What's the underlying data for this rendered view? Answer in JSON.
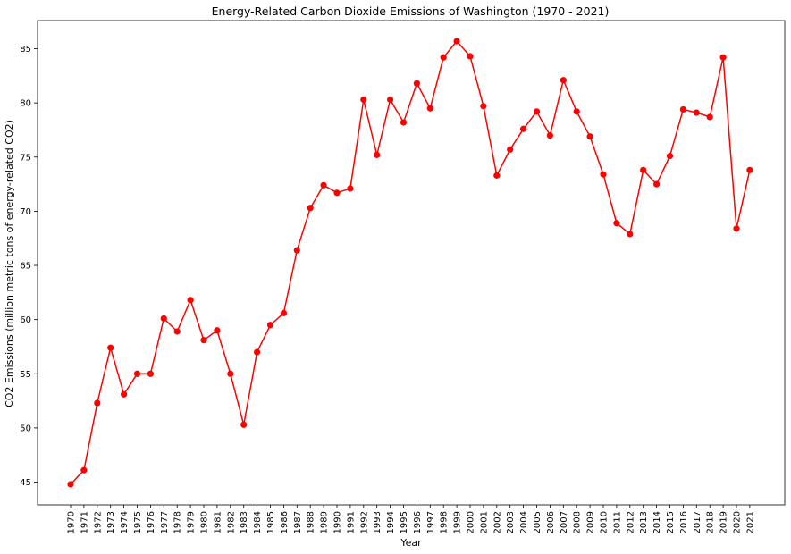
{
  "chart_data": {
    "type": "line",
    "title": "Energy-Related Carbon Dioxide Emissions of Washington (1970 - 2021)",
    "xlabel": "Year",
    "ylabel": "CO2 Emissions (million metric tons of energy-related CO2)",
    "ylim": [
      42.9,
      87.6
    ],
    "yticks": [
      45,
      50,
      55,
      60,
      65,
      70,
      75,
      80,
      85
    ],
    "grid": false,
    "line_color": "#ff0000",
    "marker": "circle",
    "series": [
      {
        "name": "Washington",
        "x": [
          "1970",
          "1971",
          "1972",
          "1973",
          "1974",
          "1975",
          "1976",
          "1977",
          "1978",
          "1979",
          "1980",
          "1981",
          "1982",
          "1983",
          "1984",
          "1985",
          "1986",
          "1987",
          "1988",
          "1989",
          "1990",
          "1991",
          "1992",
          "1993",
          "1994",
          "1995",
          "1996",
          "1997",
          "1998",
          "1999",
          "2000",
          "2001",
          "2002",
          "2003",
          "2004",
          "2005",
          "2006",
          "2007",
          "2008",
          "2009",
          "2010",
          "2011",
          "2012",
          "2013",
          "2014",
          "2015",
          "2016",
          "2017",
          "2018",
          "2019",
          "2020",
          "2021"
        ],
        "values": [
          44.8,
          46.1,
          52.3,
          57.4,
          53.1,
          55.0,
          55.0,
          60.1,
          58.9,
          61.8,
          58.1,
          59.0,
          55.0,
          50.3,
          57.0,
          59.5,
          60.6,
          66.4,
          70.3,
          72.4,
          71.7,
          72.1,
          80.3,
          75.2,
          80.3,
          78.2,
          81.8,
          79.5,
          84.2,
          85.7,
          84.3,
          79.7,
          73.3,
          75.7,
          77.6,
          79.2,
          77.0,
          82.1,
          79.2,
          76.9,
          73.4,
          68.9,
          67.9,
          73.8,
          72.5,
          75.1,
          79.4,
          79.1,
          78.7,
          84.2,
          68.4,
          73.8
        ]
      }
    ]
  }
}
